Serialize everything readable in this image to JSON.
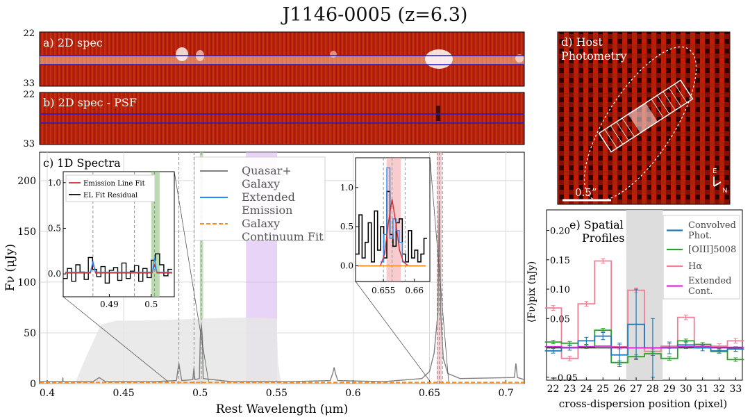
{
  "figure": {
    "title": "J1146-0005 (z=6.3)"
  },
  "panel_a": {
    "label": "a) 2D spec",
    "y_ticks": [
      "22",
      "33"
    ]
  },
  "panel_b": {
    "label": "b) 2D spec - PSF",
    "y_ticks": [
      "22",
      "33"
    ]
  },
  "panel_d": {
    "label_line1": "d) Host",
    "label_line2": "Photometry",
    "scalebar_label": "0.5”",
    "compass_e": "E",
    "compass_n": "N"
  },
  "chart_data": [
    {
      "id": "1d_spectra",
      "type": "line",
      "title": "c) 1D Spectra",
      "xlabel": "Rest Wavelength (μm)",
      "ylabel": "Fν (μJy)",
      "xlim": [
        0.395,
        0.712
      ],
      "ylim": [
        0,
        228
      ],
      "x_ticks": [
        0.4,
        0.45,
        0.5,
        0.55,
        0.6,
        0.65,
        0.7
      ],
      "x_tick_labels": [
        "0.4",
        "0.45",
        "0.5",
        "0.55",
        "0.6",
        "0.65",
        "0.7"
      ],
      "y_ticks": [
        0,
        50,
        100,
        150,
        200
      ],
      "grid": true,
      "legend": {
        "placement": "top-center",
        "entries": [
          {
            "label": "Quasar+ Galaxy",
            "line1": "Quasar+",
            "line2": "Galaxy",
            "color": "#7f7f7f",
            "style": "solid"
          },
          {
            "label": "Extended Emission",
            "line1": "Extended",
            "line2": "Emission",
            "color": "#1f8fff",
            "style": "solid"
          },
          {
            "label": "Galaxy Continuum Fit",
            "line1": "Galaxy",
            "line2": "Continuum Fit",
            "color": "#ff8c1a",
            "style": "dashed"
          }
        ]
      },
      "shaded_regions": [
        {
          "x": [
            0.53,
            0.55
          ],
          "color": "#d9b8f0"
        },
        {
          "x": [
            0.5,
            0.502
          ],
          "color": "#9ccc8c"
        },
        {
          "x": [
            0.655,
            0.658
          ],
          "color": "#f4a8ae"
        }
      ],
      "dashed_lines_x": [
        0.4861,
        0.496,
        0.5008,
        0.655,
        0.6564,
        0.6585
      ],
      "series": [
        {
          "name": "Quasar+ Galaxy",
          "color": "#7f7f7f",
          "x": [
            0.395,
            0.41,
            0.4102,
            0.4104,
            0.43,
            0.434,
            0.436,
            0.438,
            0.45,
            0.47,
            0.4845,
            0.4853,
            0.4861,
            0.4869,
            0.488,
            0.4952,
            0.4959,
            0.4966,
            0.4995,
            0.5001,
            0.5008,
            0.5015,
            0.502,
            0.52,
            0.54,
            0.56,
            0.585,
            0.5867,
            0.5876,
            0.5885,
            0.59,
            0.62,
            0.645,
            0.65,
            0.653,
            0.6555,
            0.6564,
            0.6573,
            0.659,
            0.662,
            0.67,
            0.7055,
            0.7065,
            0.7075,
            0.712
          ],
          "y": [
            2,
            2,
            6,
            2,
            2,
            6,
            4,
            2,
            2,
            2,
            3,
            12,
            20,
            12,
            3,
            4,
            15,
            4,
            5,
            45,
            58,
            45,
            5,
            2,
            2,
            2,
            3,
            10,
            16,
            10,
            3,
            2,
            5,
            12,
            30,
            70,
            180,
            70,
            25,
            10,
            5,
            6,
            20,
            6,
            4
          ]
        },
        {
          "name": "Galaxy Continuum Fit",
          "color": "#ff8c1a",
          "x": [
            0.395,
            0.712
          ],
          "y": [
            1.2,
            1.2
          ]
        }
      ],
      "filter_curve": {
        "color": "#e6e6e6",
        "x": [
          0.418,
          0.425,
          0.435,
          0.445,
          0.46,
          0.48,
          0.5,
          0.52,
          0.54,
          0.55,
          0.551,
          0.553
        ],
        "y": [
          0,
          25,
          58,
          62,
          62,
          63,
          64,
          65,
          65,
          64,
          20,
          0
        ]
      }
    },
    {
      "id": "inset_oiii",
      "type": "line",
      "xlim": [
        0.479,
        0.5055
      ],
      "ylim": [
        -0.25,
        1.12
      ],
      "x_ticks": [
        0.49,
        0.5
      ],
      "x_tick_labels": [
        "0.49",
        "0.5"
      ],
      "y_ticks": [
        0.0,
        0.5,
        1.0
      ],
      "y_tick_labels": [
        "0.0",
        "0.5",
        "1.0"
      ],
      "legend": {
        "placement": "top-left",
        "entries": [
          {
            "label": "Emission Line Fit",
            "color": "#d62728"
          },
          {
            "label": "EL Fit Residual",
            "color": "#000000"
          }
        ]
      },
      "shaded_regions": [
        {
          "x": [
            0.5,
            0.502
          ],
          "color": "#9ccc8c"
        }
      ],
      "dashed_lines_x": [
        0.4861,
        0.496,
        0.5008
      ],
      "series": [
        {
          "name": "EL Fit Residual",
          "color": "#000000",
          "step": true,
          "x": [
            0.4795,
            0.4805,
            0.4815,
            0.4825,
            0.4835,
            0.4845,
            0.4855,
            0.4865,
            0.4875,
            0.4885,
            0.4895,
            0.4905,
            0.4915,
            0.4925,
            0.4935,
            0.4945,
            0.4955,
            0.4965,
            0.4975,
            0.4985,
            0.4995,
            0.5005,
            0.5015,
            0.5025,
            0.5035,
            0.5045
          ],
          "y": [
            -0.05,
            0.06,
            -0.08,
            0.1,
            0.02,
            -0.06,
            0.18,
            0.05,
            -0.03,
            0.08,
            -0.1,
            0.04,
            0.07,
            -0.07,
            0.12,
            -0.05,
            0.03,
            0.09,
            -0.08,
            0.06,
            -0.04,
            0.15,
            0.22,
            0.1,
            -0.02,
            0.05
          ]
        },
        {
          "name": "Emission Line Fit",
          "color": "#d62728",
          "x": [
            0.4795,
            0.4855,
            0.4861,
            0.4867,
            0.499,
            0.5002,
            0.5008,
            0.5014,
            0.505
          ],
          "y": [
            0.01,
            0.01,
            0.12,
            0.01,
            0.01,
            0.01,
            0.1,
            0.01,
            0.01
          ]
        },
        {
          "name": "Extended Emission",
          "color": "#1f8fff",
          "x": [
            0.4795,
            0.4855,
            0.4861,
            0.4867,
            0.4995,
            0.5003,
            0.5008,
            0.5013,
            0.505
          ],
          "y": [
            0.02,
            0.02,
            0.14,
            0.02,
            0.02,
            0.02,
            0.18,
            0.02,
            0.02
          ]
        }
      ]
    },
    {
      "id": "inset_halpha",
      "type": "line",
      "xlim": [
        0.6505,
        0.6625
      ],
      "ylim": [
        -0.2,
        1.38
      ],
      "x_ticks": [
        0.655,
        0.66
      ],
      "x_tick_labels": [
        "0.655",
        "0.66"
      ],
      "y_ticks": [
        0.0,
        0.5,
        1.0
      ],
      "y_tick_labels": [
        "0.0",
        "0.5",
        "1.0"
      ],
      "shaded_regions": [
        {
          "x": [
            0.6555,
            0.6578
          ],
          "color": "#f4a8ae"
        }
      ],
      "dashed_lines_x": [
        0.655,
        0.6564,
        0.6585
      ],
      "series": [
        {
          "name": "EL Fit Residual",
          "color": "#000000",
          "step": true,
          "x": [
            0.6508,
            0.6513,
            0.6518,
            0.6523,
            0.6528,
            0.6533,
            0.6538,
            0.6543,
            0.6548,
            0.6553,
            0.6558,
            0.6563,
            0.6568,
            0.6573,
            0.6578,
            0.6583,
            0.6588,
            0.6593,
            0.6598,
            0.6603,
            0.6608,
            0.6613,
            0.6618
          ],
          "y": [
            0.15,
            0.65,
            0.1,
            0.3,
            0.55,
            0.05,
            0.7,
            0.2,
            0.5,
            0.1,
            0.95,
            0.4,
            0.25,
            0.55,
            0.6,
            0.15,
            0.05,
            0.45,
            0.1,
            0.2,
            0.05,
            0.15,
            0.35
          ]
        },
        {
          "name": "Extended Emission",
          "color": "#1f8fff",
          "step": true,
          "x": [
            0.6548,
            0.6553,
            0.6558,
            0.6563,
            0.6568,
            0.6573,
            0.6578,
            0.6583
          ],
          "y": [
            0.05,
            0.4,
            1.25,
            0.35,
            0.6,
            0.45,
            0.3,
            0.05
          ]
        },
        {
          "name": "Emission Line Fit",
          "color": "#d62728",
          "x": [
            0.6508,
            0.6545,
            0.6552,
            0.6558,
            0.6564,
            0.657,
            0.6576,
            0.6582,
            0.659,
            0.6618
          ],
          "y": [
            0.0,
            0.0,
            0.15,
            0.55,
            0.85,
            0.55,
            0.2,
            0.05,
            0.0,
            0.0
          ]
        },
        {
          "name": "Galaxy Continuum Fit",
          "color": "#ff8c1a",
          "x": [
            0.6508,
            0.6618
          ],
          "y": [
            0.0,
            0.0
          ]
        }
      ]
    },
    {
      "id": "spatial_profiles",
      "type": "line",
      "title_line1": "e) Spatial",
      "title_line2": "Profiles",
      "xlabel": "cross-dispersion position (pixel)",
      "ylabel": "⟨Fν⟩pix (nJy)",
      "xlim": [
        21.6,
        33.4
      ],
      "ylim": [
        -0.055,
        0.235
      ],
      "x_ticks": [
        22,
        23,
        24,
        25,
        26,
        27,
        28,
        29,
        30,
        31,
        32,
        33
      ],
      "y_ticks": [
        -0.05,
        0.0,
        0.05,
        0.1,
        0.15,
        0.2
      ],
      "y_tick_labels": [
        "−0.05",
        "",
        "0.05",
        "0.10",
        "0.15",
        "0.20"
      ],
      "shaded_regions": [
        {
          "x": [
            26.4,
            28.6
          ],
          "color": "#d9d9d9"
        }
      ],
      "legend": {
        "placement": "top-right",
        "entries": [
          {
            "label": "Convolved Phot.",
            "line1": "Convolved",
            "line2": "Phot.",
            "color": "#1f77b4"
          },
          {
            "label": "[OIII]5008",
            "line1": "[OIII]5008",
            "line2": "",
            "color": "#2ca02c"
          },
          {
            "label": "Hα",
            "line1": "Hα",
            "line2": "",
            "color": "#f07f95"
          },
          {
            "label": "Extended Cont.",
            "line1": "Extended",
            "line2": "Cont.",
            "color": "#d62ad6"
          }
        ]
      },
      "series": [
        {
          "name": "Hα",
          "color": "#f07f95",
          "step": true,
          "x": [
            22,
            23,
            24,
            25,
            26,
            27,
            28,
            29,
            30,
            31,
            32,
            33
          ],
          "y": [
            0.068,
            -0.018,
            0.075,
            0.148,
            0.002,
            0.098,
            -0.006,
            0.003,
            0.052,
            0.005,
            0.003,
            0.012
          ],
          "err": [
            0.004,
            0.004,
            0.004,
            0.004,
            0.004,
            0.004,
            0.004,
            0.004,
            0.004,
            0.004,
            0.004,
            0.004
          ]
        },
        {
          "name": "[OIII]5008",
          "color": "#2ca02c",
          "step": true,
          "x": [
            22,
            23,
            24,
            25,
            26,
            27,
            28,
            29,
            30,
            31,
            32,
            33
          ],
          "y": [
            0.01,
            0.008,
            0.002,
            0.03,
            -0.025,
            -0.015,
            -0.01,
            -0.018,
            0.012,
            0.006,
            -0.006,
            -0.02
          ],
          "err": [
            0.003,
            0.003,
            0.003,
            0.003,
            0.003,
            0.003,
            0.003,
            0.003,
            0.003,
            0.003,
            0.003,
            0.003
          ]
        },
        {
          "name": "Convolved Phot.",
          "color": "#1f77b4",
          "step": true,
          "x": [
            22,
            23,
            24,
            25,
            26,
            27,
            28,
            29,
            30,
            31,
            32,
            33
          ],
          "y": [
            -0.005,
            0.0,
            0.012,
            0.02,
            -0.012,
            0.04,
            0.0,
            0.0,
            0.005,
            0.0,
            -0.005,
            -0.002
          ],
          "err": [
            0.004,
            0.004,
            0.006,
            0.006,
            0.02,
            0.06,
            0.05,
            0.01,
            0.006,
            0.005,
            0.004,
            0.004
          ]
        },
        {
          "name": "Extended Cont.",
          "color": "#d62ad6",
          "step": true,
          "x": [
            22,
            23,
            24,
            25,
            26,
            27,
            28,
            29,
            30,
            31,
            32,
            33
          ],
          "y": [
            0.002,
            0.001,
            0.002,
            0.003,
            0.001,
            0.0,
            0.0,
            0.001,
            0.002,
            0.002,
            0.001,
            0.001
          ]
        }
      ]
    }
  ]
}
